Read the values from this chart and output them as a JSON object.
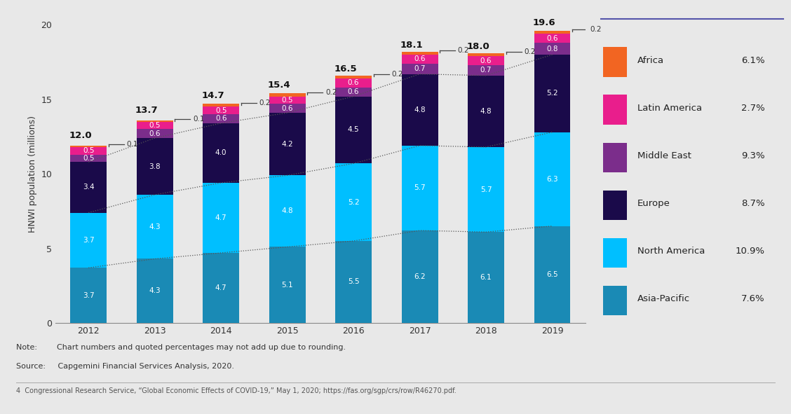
{
  "years": [
    2012,
    2013,
    2014,
    2015,
    2016,
    2017,
    2018,
    2019
  ],
  "totals": [
    12.0,
    13.7,
    14.7,
    15.4,
    16.5,
    18.1,
    18.0,
    19.6
  ],
  "segments": {
    "Asia-Pacific": [
      3.7,
      4.3,
      4.7,
      5.1,
      5.5,
      6.2,
      6.1,
      6.5
    ],
    "North America": [
      3.7,
      4.3,
      4.7,
      4.8,
      5.2,
      5.7,
      5.7,
      6.3
    ],
    "Europe": [
      3.4,
      3.8,
      4.0,
      4.2,
      4.5,
      4.8,
      4.8,
      5.2
    ],
    "Middle East": [
      0.5,
      0.6,
      0.6,
      0.6,
      0.6,
      0.7,
      0.7,
      0.8
    ],
    "Latin America": [
      0.5,
      0.5,
      0.5,
      0.5,
      0.6,
      0.6,
      0.6,
      0.6
    ],
    "Africa": [
      0.1,
      0.1,
      0.2,
      0.2,
      0.2,
      0.2,
      0.2,
      0.2
    ]
  },
  "colors": {
    "Asia-Pacific": "#1a8ab5",
    "North America": "#00bfff",
    "Europe": "#1a0a4a",
    "Middle East": "#7b2d8b",
    "Latin America": "#e91e8c",
    "Africa": "#f26522"
  },
  "legend_labels": [
    "Africa",
    "Latin America",
    "Middle East",
    "Europe",
    "North America",
    "Asia-Pacific"
  ],
  "legend_pcts": [
    "6.1%",
    "2.7%",
    "9.3%",
    "8.7%",
    "10.9%",
    "7.6%"
  ],
  "ylabel": "HNWI population (millions)",
  "ylim": [
    0,
    20
  ],
  "yticks": [
    0,
    5,
    10,
    15,
    20
  ],
  "note_line1": "Note:        Chart numbers and quoted percentages may not add up due to rounding.",
  "note_line2": "Source:     Capgemini Financial Services Analysis, 2020.",
  "footnote": "4  Congressional Research Service, “Global Economic Effects of COVID-19,” May 1, 2020; https://fas.org/sgp/crs/row/R46270.pdf.",
  "bg_color": "#e8e8e8",
  "bar_width": 0.55
}
